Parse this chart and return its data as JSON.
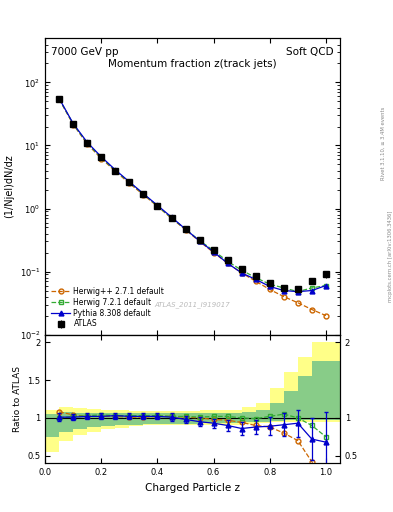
{
  "title": "Momentum fraction z(track jets)",
  "top_left_label": "7000 GeV pp",
  "top_right_label": "Soft QCD",
  "xlabel": "Charged Particle z",
  "ylabel_main": "(1/Njel)dN/dz",
  "ylabel_ratio": "Ratio to ATLAS",
  "right_label1": "Rivet 3.1.10, ≥ 3.4M events",
  "right_label2": "mcplots.cern.ch [arXiv:1306.3436]",
  "watermark": "ATLAS_2011_I919017",
  "z_centers": [
    0.05,
    0.1,
    0.15,
    0.2,
    0.25,
    0.3,
    0.35,
    0.4,
    0.45,
    0.5,
    0.55,
    0.6,
    0.65,
    0.7,
    0.75,
    0.8,
    0.85,
    0.9,
    0.95,
    1.0
  ],
  "atlas_y": [
    55.0,
    22.0,
    11.0,
    6.5,
    4.0,
    2.6,
    1.7,
    1.1,
    0.72,
    0.48,
    0.32,
    0.22,
    0.15,
    0.11,
    0.085,
    0.065,
    0.055,
    0.052,
    0.07,
    0.09
  ],
  "atlas_yerr": [
    2.5,
    0.9,
    0.45,
    0.27,
    0.16,
    0.1,
    0.07,
    0.045,
    0.03,
    0.02,
    0.015,
    0.01,
    0.007,
    0.006,
    0.005,
    0.004,
    0.004,
    0.005,
    0.007,
    0.01
  ],
  "herwig_pp_y": [
    54.0,
    21.5,
    10.5,
    6.2,
    3.9,
    2.5,
    1.65,
    1.08,
    0.7,
    0.46,
    0.3,
    0.2,
    0.135,
    0.095,
    0.07,
    0.052,
    0.04,
    0.032,
    0.025,
    0.02
  ],
  "herwig7_y": [
    54.5,
    21.8,
    10.8,
    6.4,
    4.0,
    2.6,
    1.7,
    1.1,
    0.71,
    0.47,
    0.31,
    0.215,
    0.145,
    0.105,
    0.08,
    0.063,
    0.055,
    0.048,
    0.055,
    0.06
  ],
  "pythia_y": [
    55.5,
    22.2,
    11.2,
    6.6,
    4.1,
    2.65,
    1.72,
    1.12,
    0.73,
    0.47,
    0.305,
    0.205,
    0.135,
    0.095,
    0.075,
    0.058,
    0.05,
    0.048,
    0.05,
    0.06
  ],
  "ratio_herwig_pp": [
    1.08,
    1.04,
    1.02,
    1.02,
    1.02,
    1.01,
    1.01,
    1.02,
    1.02,
    1.01,
    1.0,
    0.98,
    0.97,
    0.94,
    0.9,
    0.88,
    0.8,
    0.7,
    0.42,
    0.28
  ],
  "ratio_herwig7": [
    1.0,
    1.02,
    1.03,
    1.04,
    1.03,
    1.03,
    1.03,
    1.03,
    1.02,
    1.02,
    1.01,
    1.02,
    1.02,
    1.0,
    0.99,
    1.02,
    1.05,
    1.0,
    0.9,
    0.75
  ],
  "ratio_pythia": [
    1.01,
    1.01,
    1.02,
    1.02,
    1.03,
    1.02,
    1.02,
    1.02,
    1.01,
    0.98,
    0.95,
    0.93,
    0.9,
    0.86,
    0.88,
    0.89,
    0.91,
    0.93,
    0.72,
    0.68
  ],
  "ratio_pythia_err": [
    0.05,
    0.04,
    0.04,
    0.04,
    0.04,
    0.04,
    0.04,
    0.04,
    0.05,
    0.05,
    0.06,
    0.06,
    0.07,
    0.08,
    0.09,
    0.12,
    0.15,
    0.18,
    0.28,
    0.4
  ],
  "band_yellow_lo": [
    0.55,
    0.7,
    0.78,
    0.82,
    0.85,
    0.87,
    0.89,
    0.9,
    0.9,
    0.9,
    0.9,
    0.91,
    0.91,
    0.91,
    0.92,
    0.93,
    0.94,
    0.95,
    0.95,
    0.95
  ],
  "band_yellow_hi": [
    1.1,
    1.15,
    1.13,
    1.12,
    1.11,
    1.1,
    1.09,
    1.09,
    1.09,
    1.09,
    1.09,
    1.1,
    1.1,
    1.11,
    1.15,
    1.2,
    1.4,
    1.6,
    1.8,
    2.0
  ],
  "band_green_lo": [
    0.75,
    0.82,
    0.86,
    0.88,
    0.89,
    0.9,
    0.91,
    0.92,
    0.92,
    0.92,
    0.92,
    0.93,
    0.93,
    0.93,
    0.94,
    0.95,
    0.96,
    0.97,
    0.97,
    0.97
  ],
  "band_green_hi": [
    1.05,
    1.08,
    1.07,
    1.07,
    1.06,
    1.06,
    1.06,
    1.06,
    1.06,
    1.06,
    1.06,
    1.06,
    1.06,
    1.07,
    1.08,
    1.1,
    1.2,
    1.35,
    1.55,
    1.75
  ],
  "color_atlas": "#000000",
  "color_herwig_pp": "#cc6600",
  "color_herwig7": "#33aa33",
  "color_pythia": "#0000cc",
  "color_yellow": "#ffff88",
  "color_green": "#88cc88",
  "ylim_main": [
    0.01,
    500.0
  ],
  "ylim_ratio": [
    0.4,
    2.1
  ],
  "xlim": [
    0.0,
    1.05
  ]
}
